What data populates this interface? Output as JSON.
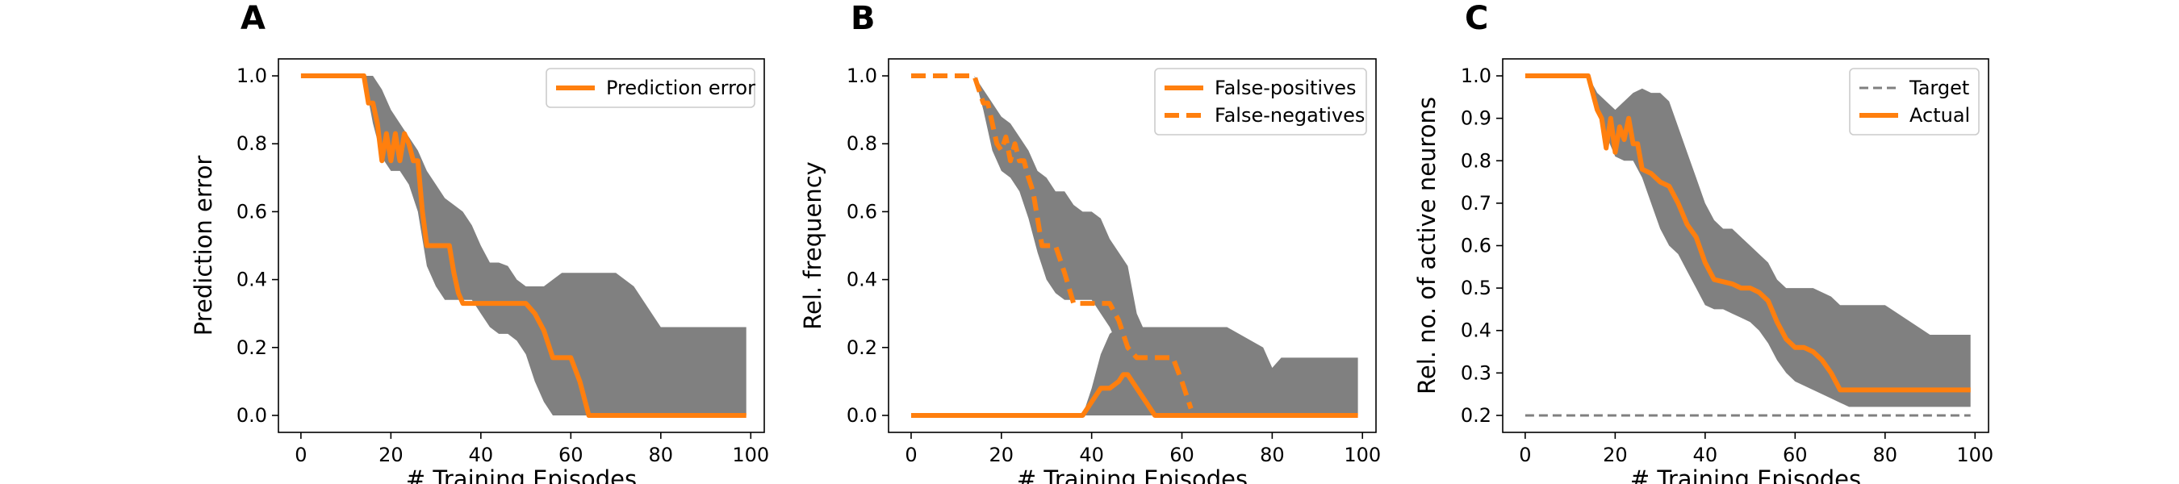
{
  "colors": {
    "line": "#ff7f0e",
    "band": "#808080",
    "target": "#808080",
    "axis": "#000000"
  },
  "chart_data": [
    {
      "type": "line",
      "panel_label": "A",
      "title": "",
      "xlabel": "# Training Episodes",
      "ylabel": "Prediction error",
      "xlim": [
        -5,
        103
      ],
      "ylim": [
        -0.05,
        1.05
      ],
      "xticks": [
        0,
        20,
        40,
        60,
        80,
        100
      ],
      "yticks": [
        0.0,
        0.2,
        0.4,
        0.6,
        0.8,
        1.0
      ],
      "xtick_labels": [
        "0",
        "20",
        "40",
        "60",
        "80",
        "100"
      ],
      "ytick_labels": [
        "0.0",
        "0.2",
        "0.4",
        "0.6",
        "0.8",
        "1.0"
      ],
      "legend_position": "top-right",
      "bands": [
        {
          "name": "spread",
          "x": [
            0,
            14,
            16,
            18,
            20,
            22,
            24,
            26,
            28,
            30,
            32,
            34,
            36,
            38,
            40,
            42,
            44,
            46,
            48,
            50,
            52,
            54,
            56,
            58,
            60,
            62,
            64,
            70,
            74,
            80,
            90,
            99
          ],
          "upper": [
            1.0,
            1.0,
            1.0,
            0.96,
            0.9,
            0.86,
            0.82,
            0.78,
            0.72,
            0.68,
            0.64,
            0.62,
            0.6,
            0.56,
            0.5,
            0.45,
            0.45,
            0.44,
            0.4,
            0.38,
            0.38,
            0.38,
            0.4,
            0.42,
            0.42,
            0.42,
            0.42,
            0.42,
            0.38,
            0.26,
            0.26,
            0.26
          ],
          "lower": [
            1.0,
            1.0,
            0.86,
            0.76,
            0.72,
            0.72,
            0.68,
            0.6,
            0.44,
            0.38,
            0.34,
            0.34,
            0.34,
            0.34,
            0.3,
            0.26,
            0.24,
            0.24,
            0.22,
            0.18,
            0.1,
            0.04,
            0.0,
            0.0,
            0.0,
            0.0,
            0.0,
            0.0,
            0.0,
            0.0,
            0.0,
            0.0
          ]
        }
      ],
      "series": [
        {
          "name": "Prediction error",
          "style": "solid",
          "x": [
            0,
            14,
            15,
            16,
            17,
            18,
            19,
            20,
            21,
            22,
            23,
            24,
            25,
            26,
            27,
            28,
            29,
            30,
            31,
            32,
            33,
            34,
            35,
            36,
            37,
            38,
            39,
            40,
            48,
            50,
            52,
            54,
            56,
            60,
            62,
            64,
            99
          ],
          "y": [
            1.0,
            1.0,
            0.92,
            0.92,
            0.86,
            0.75,
            0.83,
            0.75,
            0.83,
            0.75,
            0.83,
            0.8,
            0.75,
            0.75,
            0.6,
            0.5,
            0.5,
            0.5,
            0.5,
            0.5,
            0.5,
            0.42,
            0.36,
            0.33,
            0.33,
            0.33,
            0.33,
            0.33,
            0.33,
            0.33,
            0.3,
            0.25,
            0.17,
            0.17,
            0.1,
            0.0,
            0.0
          ]
        }
      ]
    },
    {
      "type": "line",
      "panel_label": "B",
      "title": "",
      "xlabel": "# Training Episodes",
      "ylabel": "Rel. frequency",
      "xlim": [
        -5,
        103
      ],
      "ylim": [
        -0.05,
        1.05
      ],
      "xticks": [
        0,
        20,
        40,
        60,
        80,
        100
      ],
      "yticks": [
        0.0,
        0.2,
        0.4,
        0.6,
        0.8,
        1.0
      ],
      "xtick_labels": [
        "0",
        "20",
        "40",
        "60",
        "80",
        "100"
      ],
      "ytick_labels": [
        "0.0",
        "0.2",
        "0.4",
        "0.6",
        "0.8",
        "1.0"
      ],
      "legend_position": "top-right",
      "bands": [
        {
          "name": "false-negatives-spread",
          "x": [
            14,
            16,
            18,
            20,
            22,
            24,
            26,
            28,
            30,
            32,
            34,
            36,
            38,
            40,
            42,
            44,
            46,
            48,
            50,
            52,
            54
          ],
          "upper": [
            1.0,
            0.96,
            0.92,
            0.88,
            0.86,
            0.82,
            0.78,
            0.72,
            0.7,
            0.66,
            0.66,
            0.62,
            0.6,
            0.6,
            0.58,
            0.52,
            0.48,
            0.44,
            0.3,
            0.24,
            0.2
          ],
          "lower": [
            1.0,
            0.9,
            0.78,
            0.72,
            0.7,
            0.66,
            0.58,
            0.48,
            0.4,
            0.36,
            0.34,
            0.34,
            0.34,
            0.34,
            0.3,
            0.26,
            0.2,
            0.12,
            0.04,
            0.0,
            0.0
          ]
        },
        {
          "name": "false-positives-spread",
          "x": [
            38,
            40,
            42,
            44,
            46,
            48,
            50,
            54,
            60,
            70,
            78,
            80,
            82,
            84,
            90,
            99
          ],
          "upper": [
            0.0,
            0.08,
            0.18,
            0.24,
            0.26,
            0.26,
            0.26,
            0.26,
            0.26,
            0.26,
            0.2,
            0.14,
            0.17,
            0.17,
            0.17,
            0.17
          ],
          "lower": [
            0.0,
            0.0,
            0.0,
            0.0,
            0.0,
            0.0,
            0.0,
            0.0,
            0.0,
            0.0,
            0.0,
            0.0,
            0.0,
            0.0,
            0.0,
            0.0
          ]
        }
      ],
      "series": [
        {
          "name": "False-positives",
          "style": "solid",
          "x": [
            0,
            38,
            40,
            42,
            44,
            46,
            47,
            48,
            49,
            50,
            52,
            54,
            99
          ],
          "y": [
            0.0,
            0.0,
            0.04,
            0.08,
            0.08,
            0.1,
            0.12,
            0.12,
            0.1,
            0.08,
            0.04,
            0.0,
            0.0
          ]
        },
        {
          "name": "False-negatives",
          "style": "dashed",
          "x": [
            0,
            14,
            16,
            17,
            18,
            19,
            20,
            21,
            22,
            23,
            24,
            25,
            26,
            27,
            28,
            29,
            30,
            32,
            34,
            36,
            38,
            40,
            44,
            46,
            48,
            50,
            52,
            54,
            56,
            58,
            60,
            62
          ],
          "y": [
            1.0,
            1.0,
            0.92,
            0.92,
            0.86,
            0.8,
            0.78,
            0.82,
            0.75,
            0.8,
            0.75,
            0.75,
            0.7,
            0.66,
            0.58,
            0.5,
            0.5,
            0.5,
            0.42,
            0.33,
            0.33,
            0.33,
            0.33,
            0.28,
            0.2,
            0.17,
            0.17,
            0.17,
            0.17,
            0.17,
            0.1,
            0.02
          ]
        }
      ]
    },
    {
      "type": "line",
      "panel_label": "C",
      "title": "",
      "xlabel": "# Training Episodes",
      "ylabel": "Rel. no. of active neurons",
      "xlim": [
        -5,
        103
      ],
      "ylim": [
        0.16,
        1.04
      ],
      "xticks": [
        0,
        20,
        40,
        60,
        80,
        100
      ],
      "yticks": [
        0.2,
        0.3,
        0.4,
        0.5,
        0.6,
        0.7,
        0.8,
        0.9,
        1.0
      ],
      "xtick_labels": [
        "0",
        "20",
        "40",
        "60",
        "80",
        "100"
      ],
      "ytick_labels": [
        "0.2",
        "0.3",
        "0.4",
        "0.5",
        "0.6",
        "0.7",
        "0.8",
        "0.9",
        "1.0"
      ],
      "legend_position": "top-right",
      "bands": [
        {
          "name": "spread",
          "x": [
            0,
            14,
            16,
            18,
            20,
            22,
            24,
            26,
            28,
            30,
            32,
            34,
            36,
            38,
            40,
            42,
            44,
            46,
            48,
            50,
            52,
            54,
            56,
            58,
            60,
            64,
            68,
            70,
            72,
            74,
            80,
            90,
            98,
            99
          ],
          "upper": [
            1.0,
            1.0,
            0.96,
            0.94,
            0.92,
            0.94,
            0.96,
            0.97,
            0.96,
            0.96,
            0.94,
            0.88,
            0.82,
            0.76,
            0.7,
            0.66,
            0.64,
            0.64,
            0.62,
            0.6,
            0.58,
            0.56,
            0.52,
            0.5,
            0.5,
            0.5,
            0.48,
            0.46,
            0.46,
            0.46,
            0.46,
            0.39,
            0.39,
            0.39
          ],
          "lower": [
            1.0,
            1.0,
            0.92,
            0.86,
            0.81,
            0.8,
            0.8,
            0.76,
            0.7,
            0.64,
            0.6,
            0.58,
            0.54,
            0.5,
            0.46,
            0.45,
            0.45,
            0.44,
            0.43,
            0.42,
            0.4,
            0.37,
            0.33,
            0.3,
            0.28,
            0.26,
            0.24,
            0.23,
            0.22,
            0.22,
            0.22,
            0.22,
            0.22,
            0.22
          ]
        }
      ],
      "series": [
        {
          "name": "Target",
          "style": "dashed-gray",
          "x": [
            0,
            99
          ],
          "y": [
            0.2,
            0.2
          ]
        },
        {
          "name": "Actual",
          "style": "solid",
          "x": [
            0,
            14,
            16,
            17,
            18,
            19,
            20,
            21,
            22,
            23,
            24,
            25,
            26,
            28,
            30,
            32,
            34,
            36,
            38,
            40,
            42,
            46,
            48,
            50,
            52,
            54,
            56,
            58,
            60,
            62,
            64,
            66,
            68,
            70,
            72,
            80,
            99
          ],
          "y": [
            1.0,
            1.0,
            0.92,
            0.9,
            0.83,
            0.9,
            0.82,
            0.88,
            0.85,
            0.9,
            0.84,
            0.84,
            0.78,
            0.77,
            0.75,
            0.74,
            0.7,
            0.65,
            0.62,
            0.56,
            0.52,
            0.51,
            0.5,
            0.5,
            0.49,
            0.47,
            0.42,
            0.38,
            0.36,
            0.36,
            0.35,
            0.33,
            0.3,
            0.26,
            0.26,
            0.26,
            0.26
          ]
        }
      ]
    }
  ]
}
